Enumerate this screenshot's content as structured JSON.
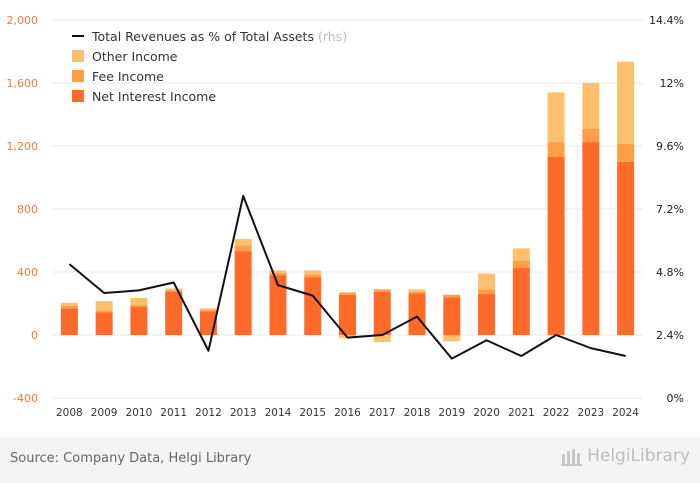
{
  "chart_data": {
    "type": "bar",
    "categories": [
      "2008",
      "2009",
      "2010",
      "2011",
      "2012",
      "2013",
      "2014",
      "2015",
      "2016",
      "2017",
      "2018",
      "2019",
      "2020",
      "2021",
      "2022",
      "2023",
      "2024"
    ],
    "series": [
      {
        "name": "Net Interest Income",
        "color": "#ff6a28",
        "values": [
          170,
          145,
          180,
          275,
          150,
          530,
          380,
          365,
          255,
          275,
          265,
          240,
          260,
          425,
          1130,
          1225,
          1100
        ]
      },
      {
        "name": "Fee Income",
        "color": "#ff9e45",
        "values": [
          15,
          10,
          10,
          10,
          10,
          40,
          15,
          20,
          15,
          15,
          10,
          15,
          30,
          45,
          95,
          85,
          115
        ]
      },
      {
        "name": "Other Income",
        "color": "#ffc06e",
        "values": [
          20,
          60,
          45,
          10,
          10,
          40,
          15,
          25,
          -20,
          -45,
          15,
          -40,
          100,
          80,
          315,
          290,
          520
        ]
      },
      {
        "name": "Total Revenues as % of Total Assets",
        "axis": "rhs",
        "color": "#111111",
        "values": [
          5.1,
          4.0,
          4.1,
          4.4,
          1.8,
          7.7,
          4.3,
          3.9,
          2.3,
          2.4,
          3.1,
          1.5,
          2.2,
          1.6,
          2.4,
          1.9,
          1.6
        ]
      }
    ],
    "ylim": [
      -400,
      2000
    ],
    "yticks": [
      "-400",
      "0",
      "400",
      "800",
      "1,200",
      "1,600",
      "2,000"
    ],
    "y2lim": [
      0,
      14.4
    ],
    "y2ticks": [
      "0%",
      "2.4%",
      "4.8%",
      "7.2%",
      "9.6%",
      "12%",
      "14.4%"
    ],
    "xlabel": "",
    "ylabel": "",
    "grid": true,
    "legend_position": "top-left"
  },
  "legend": {
    "line_label": "Total Revenues as % of Total Assets",
    "rhs_suffix": "(rhs)",
    "items": [
      "Other Income",
      "Fee Income",
      "Net Interest Income"
    ]
  },
  "footer": {
    "source": "Source: Company Data, Helgi Library",
    "logo_text": "HelgiLibrary"
  },
  "colors": {
    "left_axis_text": "#f07b3f",
    "grid": "#e8e8e8"
  }
}
